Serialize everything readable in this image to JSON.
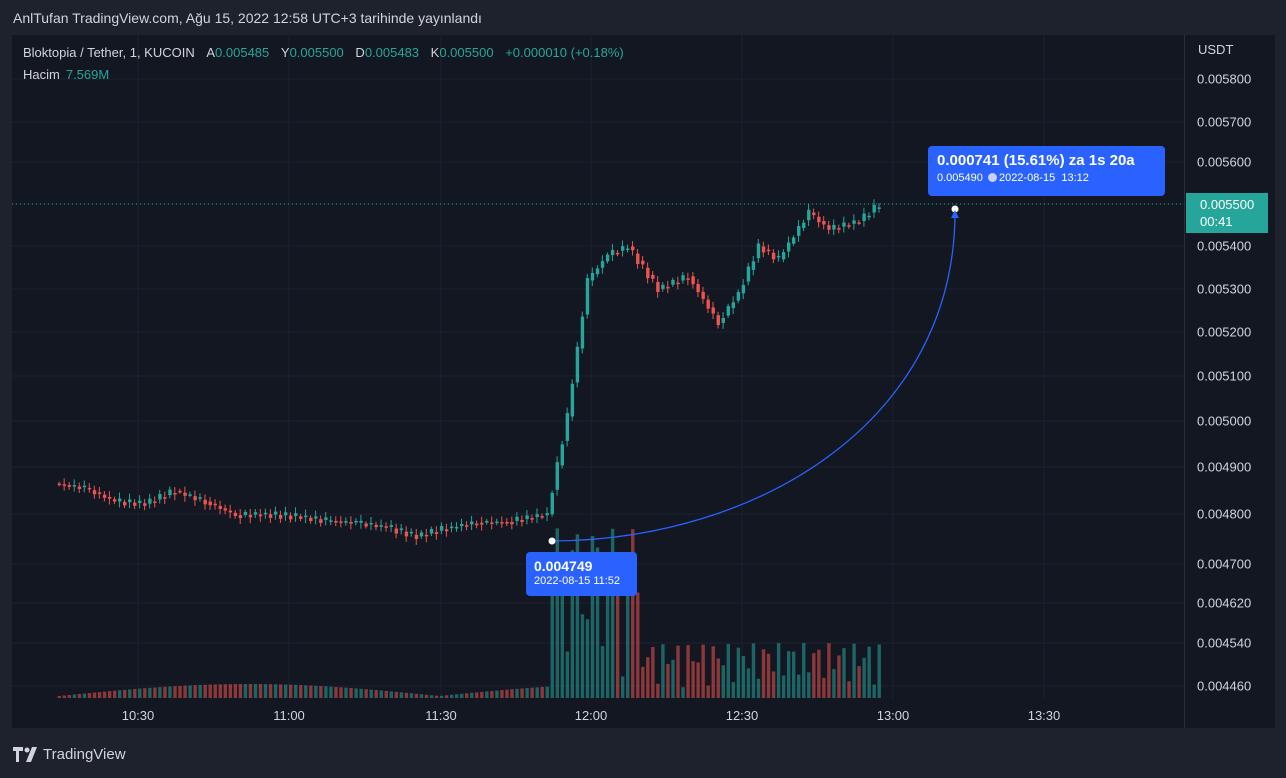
{
  "caption": "AnlTufan TradingView.com, Ağu 15, 2022 12:58 UTC+3 tarihinde yayınlandı",
  "legend": {
    "symbol": "Bloktopia / Tether, 1, KUCOIN",
    "open_label": "A",
    "open": "0.005485",
    "high_label": "Y",
    "high": "0.005500",
    "low_label": "D",
    "low": "0.005483",
    "close_label": "K",
    "close": "0.005500",
    "change": "+0.000010 (+0.18%)",
    "volume_label": "Hacim",
    "volume": "7.569M"
  },
  "price_axis": {
    "currency": "USDT",
    "ticks": [
      "0.005800",
      "0.005700",
      "0.005600",
      "0.005500",
      "0.005400",
      "0.005300",
      "0.005200",
      "0.005100",
      "0.005000",
      "0.004900",
      "0.004800",
      "0.004700",
      "0.004620",
      "0.004540",
      "0.004460"
    ]
  },
  "last_price_tag": {
    "price": "0.005500",
    "countdown": "00:41"
  },
  "time_axis": {
    "ticks": [
      "10:30",
      "11:00",
      "11:30",
      "12:00",
      "12:30",
      "13:00",
      "13:30"
    ]
  },
  "projection": {
    "start": {
      "price": "0.004749",
      "datetime": "2022-08-15 11:52"
    },
    "end": {
      "summary": "0.000741 (15.61%) za 1s 20a",
      "price": "0.005490",
      "date": "2022-08-15",
      "time": "13:12"
    }
  },
  "brand": "TradingView",
  "colors": {
    "up": "#26a69a",
    "down": "#ef5350",
    "background": "#131722",
    "accent": "#2962ff"
  },
  "chart_data": {
    "type": "candlestick",
    "x_unit": "time (HH:MM, 1-minute bars)",
    "y_unit": "USDT",
    "ylim": [
      0.00444,
      0.00585
    ],
    "series": [
      {
        "x": "10:14",
        "close": 0.004842
      },
      {
        "x": "10:20",
        "close": 0.004832
      },
      {
        "x": "10:26",
        "close": 0.0048
      },
      {
        "x": "10:32",
        "close": 0.004795
      },
      {
        "x": "10:38",
        "close": 0.004825
      },
      {
        "x": "10:44",
        "close": 0.0048
      },
      {
        "x": "10:50",
        "close": 0.004768
      },
      {
        "x": "10:56",
        "close": 0.00477
      },
      {
        "x": "11:02",
        "close": 0.004765
      },
      {
        "x": "11:08",
        "close": 0.004755
      },
      {
        "x": "11:14",
        "close": 0.00475
      },
      {
        "x": "11:20",
        "close": 0.00474
      },
      {
        "x": "11:26",
        "close": 0.004718
      },
      {
        "x": "11:32",
        "close": 0.004738
      },
      {
        "x": "11:38",
        "close": 0.00475
      },
      {
        "x": "11:44",
        "close": 0.004752
      },
      {
        "x": "11:52",
        "close": 0.00477
      },
      {
        "x": "11:56",
        "close": 0.005
      },
      {
        "x": "12:00",
        "close": 0.00532
      },
      {
        "x": "12:04",
        "close": 0.00538
      },
      {
        "x": "12:08",
        "close": 0.0054
      },
      {
        "x": "12:14",
        "close": 0.0053
      },
      {
        "x": "12:20",
        "close": 0.00533
      },
      {
        "x": "12:26",
        "close": 0.00522
      },
      {
        "x": "12:30",
        "close": 0.00529
      },
      {
        "x": "12:34",
        "close": 0.0054
      },
      {
        "x": "12:38",
        "close": 0.00537
      },
      {
        "x": "12:44",
        "close": 0.00548
      },
      {
        "x": "12:48",
        "close": 0.00544
      },
      {
        "x": "12:54",
        "close": 0.00546
      },
      {
        "x": "12:58",
        "close": 0.0055
      }
    ]
  }
}
